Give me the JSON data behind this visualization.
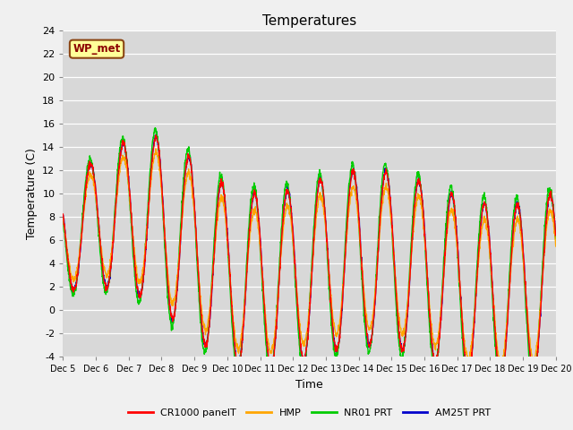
{
  "title": "Temperatures",
  "xlabel": "Time",
  "ylabel": "Temperature (C)",
  "ylim": [
    -4,
    24
  ],
  "yticks": [
    -4,
    -2,
    0,
    2,
    4,
    6,
    8,
    10,
    12,
    14,
    16,
    18,
    20,
    22,
    24
  ],
  "xtick_labels": [
    "Dec 5",
    "Dec 6",
    "Dec 7",
    "Dec 8",
    "Dec 9",
    "Dec 10",
    "Dec 11",
    "Dec 12",
    "Dec 13",
    "Dec 14",
    "Dec 15",
    "Dec 16",
    "Dec 17",
    "Dec 18",
    "Dec 19",
    "Dec 20"
  ],
  "colors": {
    "CR1000 panelT": "#ff0000",
    "HMP": "#ffa500",
    "NR01 PRT": "#00cc00",
    "AM25T PRT": "#0000cc"
  },
  "bg_color": "#d8d8d8",
  "annotation_text": "WP_met",
  "annotation_bg": "#ffff99",
  "annotation_border": "#8b4513",
  "figsize": [
    6.4,
    4.8
  ],
  "dpi": 100
}
